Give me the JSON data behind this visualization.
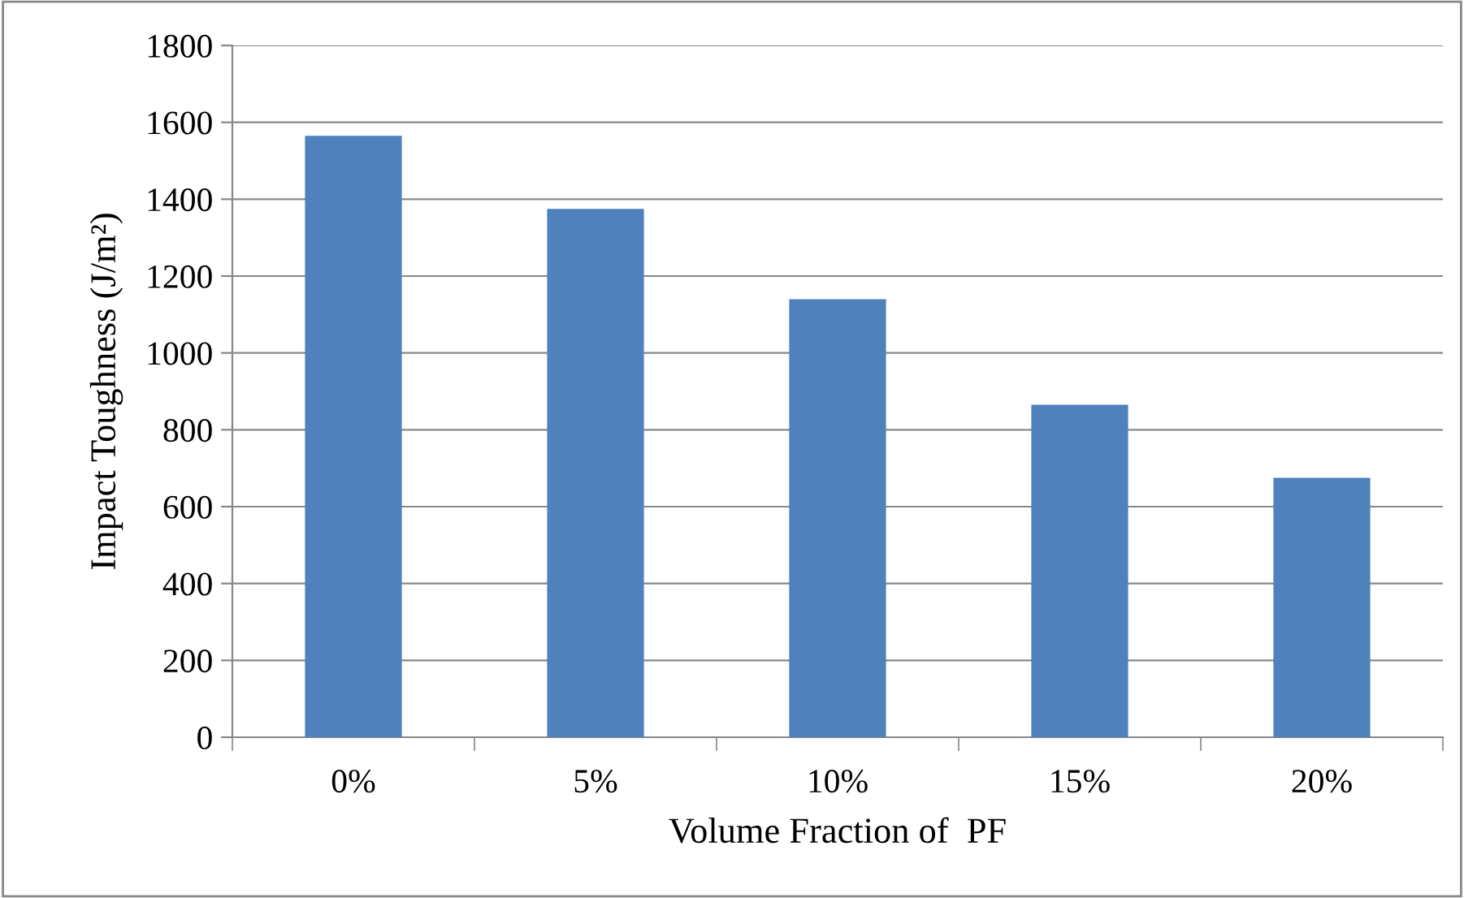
{
  "chart_data": {
    "type": "bar",
    "xlabel": "Volume Fraction of  PF",
    "ylabel": "Impact Toughness (J/m²)",
    "categories": [
      "0%",
      "5%",
      "10%",
      "15%",
      "20%"
    ],
    "values": [
      1565,
      1375,
      1140,
      865,
      675
    ],
    "color": "#4f81bd",
    "ylim": [
      0,
      1800
    ],
    "yticks": [
      0,
      200,
      400,
      600,
      800,
      1000,
      1200,
      1400,
      1600,
      1800
    ],
    "grid": "y"
  }
}
